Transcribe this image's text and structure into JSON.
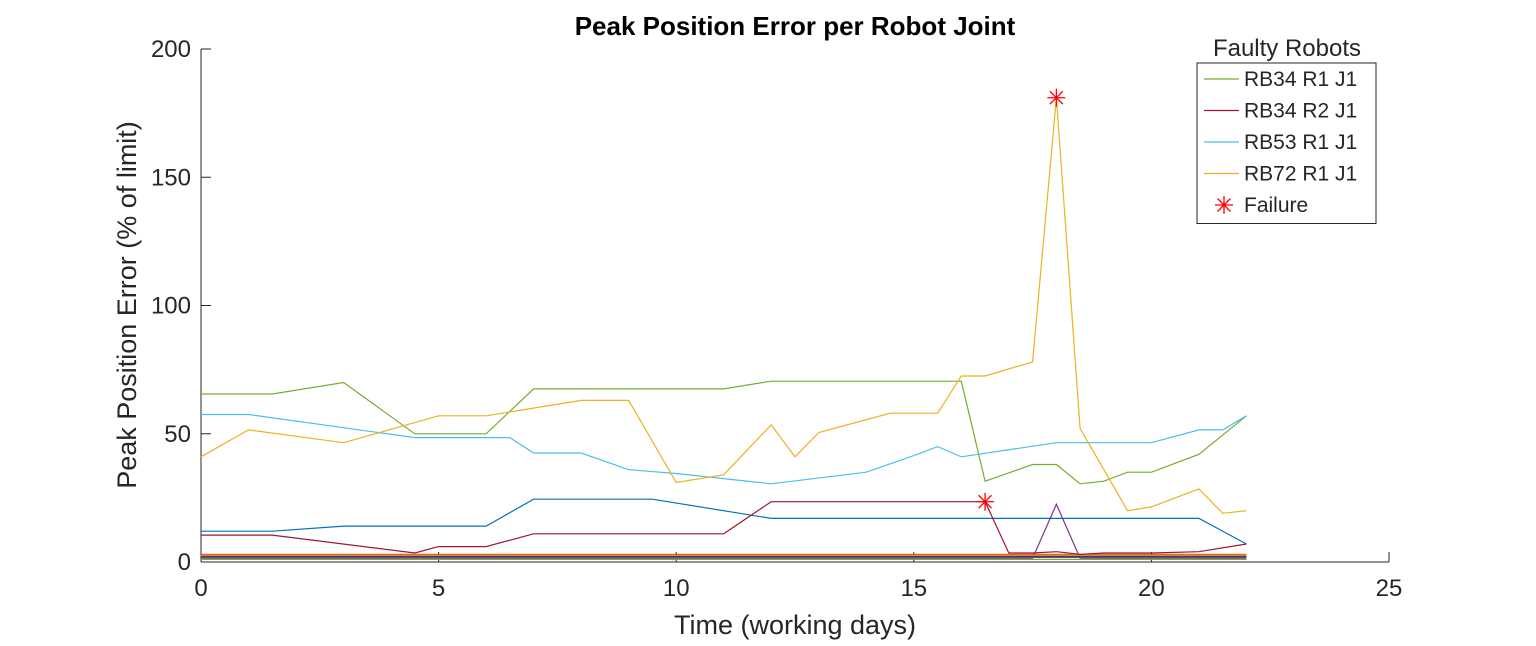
{
  "chart_data": {
    "type": "line",
    "title": "Peak Position Error per Robot Joint",
    "xlabel": "Time (working days)",
    "ylabel": "Peak Position Error (% of limit)",
    "xlim": [
      0,
      25
    ],
    "ylim": [
      0,
      200
    ],
    "xticks": [
      0,
      5,
      10,
      15,
      20,
      25
    ],
    "yticks": [
      0,
      50,
      100,
      150,
      200
    ],
    "grid": false,
    "legend": {
      "title": "Faulty Robots",
      "placement": "top-right",
      "entries": [
        {
          "label": "RB34 R1 J1",
          "color": "#77AC30",
          "marker": "line"
        },
        {
          "label": "RB34 R2 J1",
          "color": "#A2142F",
          "marker": "line"
        },
        {
          "label": "RB53 R1 J1",
          "color": "#4DBEEE",
          "marker": "line"
        },
        {
          "label": "RB72 R1 J1",
          "color": "#EDB120",
          "marker": "line"
        },
        {
          "label": "Failure",
          "color": "#FF0000",
          "marker": "star"
        }
      ]
    },
    "series": [
      {
        "name": "RB34 R1 J1",
        "color": "#77AC30",
        "points": [
          [
            0,
            65.5
          ],
          [
            1.5,
            65.5
          ],
          [
            3,
            70
          ],
          [
            4.5,
            50
          ],
          [
            6,
            50
          ],
          [
            7,
            67.5
          ],
          [
            11,
            67.5
          ],
          [
            12,
            70.5
          ],
          [
            16,
            70.5
          ],
          [
            16.5,
            31.5
          ],
          [
            17.5,
            38
          ],
          [
            18,
            38
          ],
          [
            18.5,
            30.5
          ],
          [
            19,
            31.5
          ],
          [
            19.5,
            35
          ],
          [
            20,
            35
          ],
          [
            21,
            42
          ],
          [
            22,
            57
          ]
        ]
      },
      {
        "name": "RB34 R2 J1",
        "color": "#A2142F",
        "points": [
          [
            0,
            10.5
          ],
          [
            1.5,
            10.5
          ],
          [
            4.5,
            3.5
          ],
          [
            5,
            6
          ],
          [
            6,
            6
          ],
          [
            7,
            11
          ],
          [
            11,
            11
          ],
          [
            12,
            23.5
          ],
          [
            16.5,
            23.5
          ],
          [
            17,
            3.5
          ],
          [
            17.5,
            3.5
          ],
          [
            18,
            4
          ],
          [
            18.5,
            3
          ],
          [
            19,
            3.5
          ],
          [
            20,
            3.5
          ],
          [
            21,
            4
          ],
          [
            22,
            7
          ]
        ]
      },
      {
        "name": "RB53 R1 J1",
        "color": "#4DBEEE",
        "points": [
          [
            0,
            57.5
          ],
          [
            1,
            57.5
          ],
          [
            4.5,
            48.5
          ],
          [
            6.5,
            48.5
          ],
          [
            7,
            42.5
          ],
          [
            8,
            42.5
          ],
          [
            9,
            36
          ],
          [
            10,
            34.5
          ],
          [
            12,
            30.5
          ],
          [
            14,
            35
          ],
          [
            15,
            41.5
          ],
          [
            15.5,
            45
          ],
          [
            16,
            41
          ],
          [
            18,
            46.5
          ],
          [
            20,
            46.5
          ],
          [
            21,
            51.5
          ],
          [
            21.5,
            51.5
          ],
          [
            22,
            57
          ]
        ]
      },
      {
        "name": "RB72 R1 J1",
        "color": "#EDB120",
        "points": [
          [
            0,
            41
          ],
          [
            1,
            51.5
          ],
          [
            3,
            46.5
          ],
          [
            5,
            57
          ],
          [
            6,
            57
          ],
          [
            8,
            63
          ],
          [
            9,
            63
          ],
          [
            10,
            31
          ],
          [
            11,
            34
          ],
          [
            12,
            53.5
          ],
          [
            12.5,
            41
          ],
          [
            13,
            50.5
          ],
          [
            14.5,
            58
          ],
          [
            15.5,
            58
          ],
          [
            16,
            72.5
          ],
          [
            16.5,
            72.5
          ],
          [
            17.5,
            78
          ],
          [
            18,
            181
          ],
          [
            18.5,
            52
          ],
          [
            19.5,
            20
          ],
          [
            20,
            21.5
          ],
          [
            21,
            28.5
          ],
          [
            21.5,
            19
          ],
          [
            22,
            20
          ]
        ]
      },
      {
        "color": "#0072BD",
        "points": [
          [
            0,
            12
          ],
          [
            1.5,
            12
          ],
          [
            3,
            14
          ],
          [
            6,
            14
          ],
          [
            7,
            24.5
          ],
          [
            9.5,
            24.5
          ],
          [
            12,
            17
          ],
          [
            21,
            17
          ],
          [
            22,
            7
          ]
        ]
      },
      {
        "color": "#7E2F8E",
        "points": [
          [
            0,
            1.5
          ],
          [
            17,
            1.5
          ],
          [
            17.5,
            1.5
          ],
          [
            18,
            22.5
          ],
          [
            18.5,
            1.5
          ],
          [
            22,
            1.5
          ]
        ]
      },
      {
        "color": "#D95319",
        "points": [
          [
            0,
            3
          ],
          [
            22,
            3
          ]
        ]
      },
      {
        "color": "#EDB120",
        "points": [
          [
            0,
            2.5
          ],
          [
            22,
            2.5
          ]
        ]
      },
      {
        "color": "#77AC30",
        "points": [
          [
            0,
            1
          ],
          [
            22,
            1
          ]
        ]
      },
      {
        "color": "#4DBEEE",
        "points": [
          [
            0,
            2
          ],
          [
            22,
            2
          ]
        ]
      },
      {
        "color": "#0072BD",
        "points": [
          [
            0,
            1.8
          ],
          [
            22,
            1.8
          ]
        ]
      },
      {
        "color": "#A2142F",
        "points": [
          [
            0,
            2.2
          ],
          [
            22,
            2.2
          ]
        ]
      }
    ],
    "failures": [
      {
        "x": 16.5,
        "y": 23.5
      },
      {
        "x": 18,
        "y": 181
      }
    ]
  }
}
